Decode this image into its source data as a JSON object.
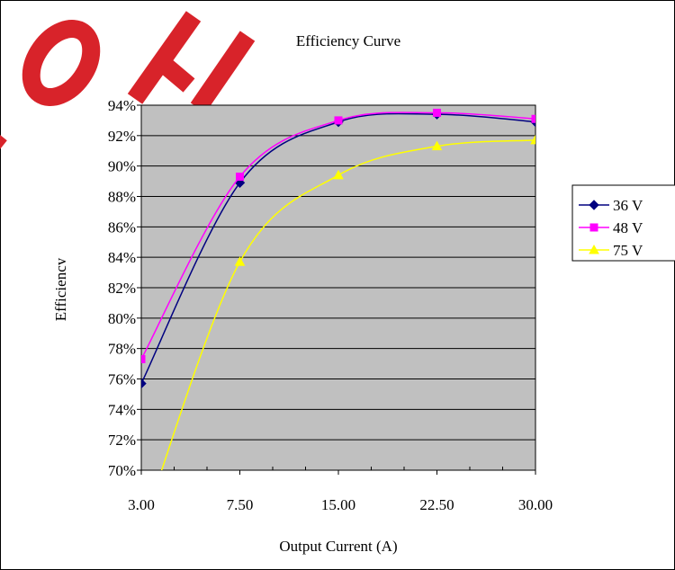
{
  "chart_data": {
    "type": "line",
    "title": "Efficiency Curve",
    "xlabel": "Output Current  (A)",
    "ylabel": "Efficiency",
    "x_tick_labels": [
      "3.00",
      "7.50",
      "15.00",
      "22.50",
      "30.00"
    ],
    "y_tick_labels": [
      "70%",
      "72%",
      "74%",
      "76%",
      "78%",
      "80%",
      "82%",
      "84%",
      "86%",
      "88%",
      "90%",
      "92%",
      "94%"
    ],
    "ylim": [
      70,
      94
    ],
    "grid": true,
    "legend_position": "right",
    "plot_background": "#c0c0c0",
    "series": [
      {
        "name": "36 V",
        "color": "#000080",
        "marker": "diamond",
        "values": [
          75.7,
          88.9,
          92.9,
          93.4,
          92.9
        ]
      },
      {
        "name": "48 V",
        "color": "#ff00ff",
        "marker": "square",
        "values": [
          77.3,
          89.3,
          93.0,
          93.5,
          93.1
        ]
      },
      {
        "name": "75 V",
        "color": "#ffff00",
        "marker": "triangle",
        "values": [
          66.0,
          83.7,
          89.4,
          91.3,
          91.7
        ]
      }
    ]
  }
}
